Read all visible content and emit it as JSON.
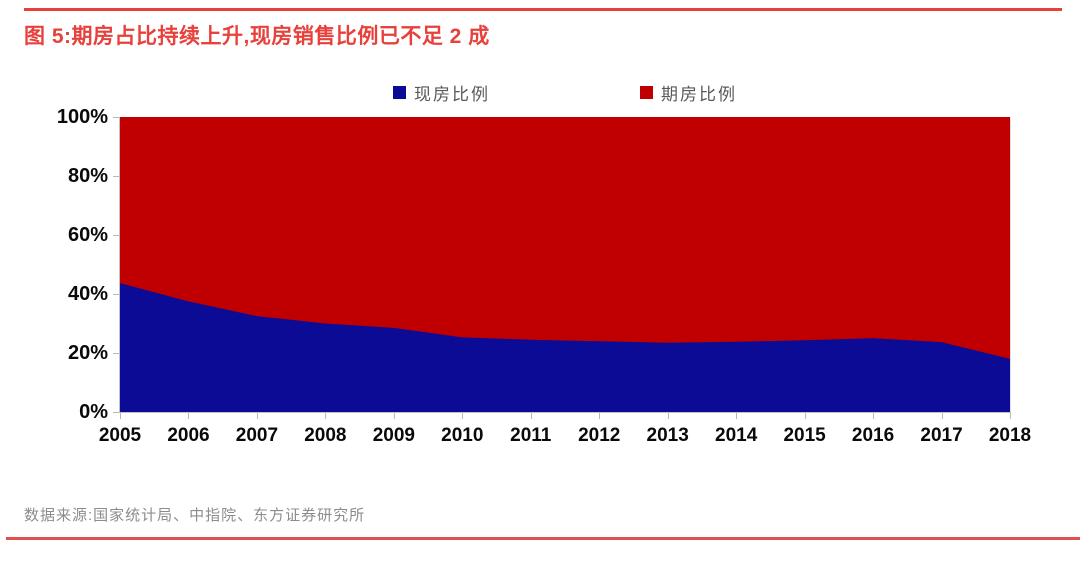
{
  "title": "图 5:期房占比持续上升,现房销售比例已不足 2 成",
  "source_note": "数据来源:国家统计局、中指院、东方证券研究所",
  "colors": {
    "accent_red": "#e8413c",
    "series_blue": "#0b0b96",
    "series_red": "#c00000",
    "axis_line": "#c0c0c0",
    "axis_label": "#0a0a0a",
    "legend_text": "#595959",
    "source_text": "#8c8c8c"
  },
  "chart_data": {
    "type": "area",
    "stacked": true,
    "grid": false,
    "legend_position": "top",
    "title": "期房占比持续上升,现房销售比例已不足 2 成",
    "xlabel": "",
    "ylabel": "",
    "ylim": [
      0,
      100
    ],
    "y_ticks": [
      "0%",
      "20%",
      "40%",
      "60%",
      "80%",
      "100%"
    ],
    "y_tick_values": [
      0,
      20,
      40,
      60,
      80,
      100
    ],
    "categories": [
      "2005",
      "2006",
      "2007",
      "2008",
      "2009",
      "2010",
      "2011",
      "2012",
      "2013",
      "2014",
      "2015",
      "2016",
      "2017",
      "2018"
    ],
    "series": [
      {
        "name": "现房比例",
        "color": "#0b0b96",
        "values": [
          43.7,
          37.5,
          32.5,
          30.0,
          28.5,
          25.3,
          24.5,
          24.0,
          23.5,
          23.8,
          24.3,
          25.0,
          23.7,
          18.0
        ]
      },
      {
        "name": "期房比例",
        "color": "#c00000",
        "values": [
          56.3,
          62.5,
          67.5,
          70.0,
          71.5,
          74.7,
          75.5,
          76.0,
          76.5,
          76.2,
          75.7,
          75.0,
          76.3,
          82.0
        ]
      }
    ]
  }
}
